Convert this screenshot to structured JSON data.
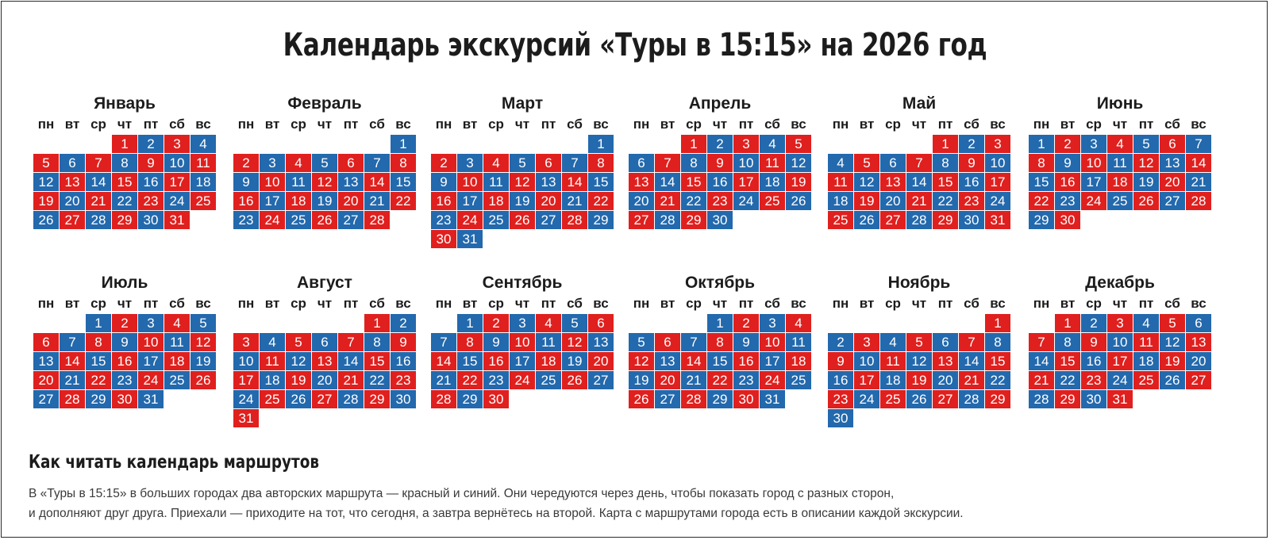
{
  "title": "Календарь экскурсий «Туры в 15:15» на 2026 год",
  "weekdays": [
    "пн",
    "вт",
    "ср",
    "чт",
    "пт",
    "сб",
    "вс"
  ],
  "colors": {
    "red": "#e0201e",
    "blue": "#2369ad"
  },
  "months": [
    {
      "name": "Январь",
      "start_weekday": 4,
      "days": 31,
      "first_day_color": "red"
    },
    {
      "name": "Февраль",
      "start_weekday": 7,
      "days": 28,
      "first_day_color": "blue"
    },
    {
      "name": "Март",
      "start_weekday": 7,
      "days": 31,
      "first_day_color": "blue"
    },
    {
      "name": "Апрель",
      "start_weekday": 3,
      "days": 30,
      "first_day_color": "red"
    },
    {
      "name": "Май",
      "start_weekday": 5,
      "days": 31,
      "first_day_color": "red"
    },
    {
      "name": "Июнь",
      "start_weekday": 1,
      "days": 30,
      "first_day_color": "blue"
    },
    {
      "name": "Июль",
      "start_weekday": 3,
      "days": 31,
      "first_day_color": "blue"
    },
    {
      "name": "Август",
      "start_weekday": 6,
      "days": 31,
      "first_day_color": "red"
    },
    {
      "name": "Сентябрь",
      "start_weekday": 2,
      "days": 30,
      "first_day_color": "blue"
    },
    {
      "name": "Октябрь",
      "start_weekday": 4,
      "days": 31,
      "first_day_color": "blue"
    },
    {
      "name": "Ноябрь",
      "start_weekday": 7,
      "days": 30,
      "first_day_color": "red"
    },
    {
      "name": "Декабрь",
      "start_weekday": 2,
      "days": 31,
      "first_day_color": "red"
    }
  ],
  "legend": {
    "title": "Как читать календарь маршрутов",
    "lines": [
      "В «Туры в 15:15» в больших городах два авторских маршрута — красный и синий. Они чередуются через день, чтобы показать город с разных сторон,",
      "и дополняют друг друга. Приехали — приходите на тот, что сегодня, а завтра вернётесь на второй. Карта с маршрутами города есть в описании каждой экскурсии."
    ]
  }
}
